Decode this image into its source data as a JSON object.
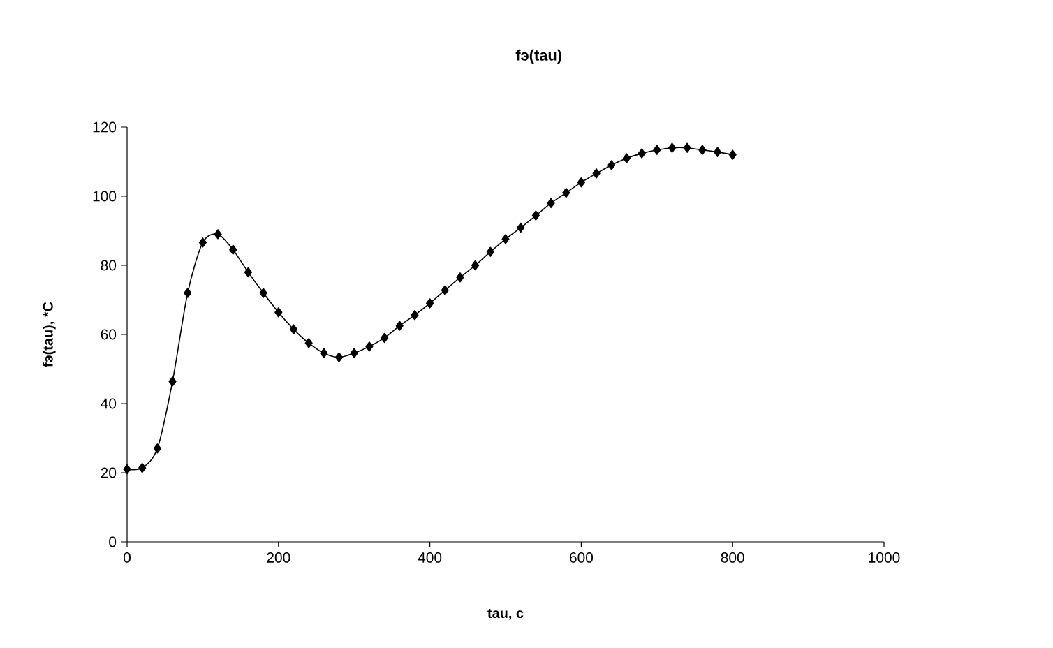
{
  "chart_data": {
    "type": "line",
    "title": "fэ(tau)",
    "xlabel": "tau, c",
    "ylabel": "fэ(tau), *C",
    "x": [
      0,
      20,
      40,
      60,
      80,
      100,
      120,
      140,
      160,
      180,
      200,
      220,
      240,
      260,
      280,
      300,
      320,
      340,
      360,
      380,
      400,
      420,
      440,
      460,
      480,
      500,
      520,
      540,
      560,
      580,
      600,
      620,
      640,
      660,
      680,
      700,
      720,
      740,
      760,
      780,
      800
    ],
    "series": [
      {
        "color": "#000000",
        "values": [
          21,
          21.4,
          27,
          46.4,
          72,
          86.6,
          89,
          84.5,
          78,
          72,
          66.4,
          61.5,
          57.5,
          54.6,
          53.4,
          54.6,
          56.5,
          59,
          62.5,
          65.6,
          69,
          72.8,
          76.5,
          80,
          83.9,
          87.6,
          90.9,
          94.4,
          98,
          101,
          104,
          106.6,
          109,
          111,
          112.4,
          113.4,
          114,
          114,
          113.4,
          112.8,
          112
        ]
      }
    ],
    "xlim": [
      0,
      1000
    ],
    "ylim": [
      0,
      120
    ],
    "xticks": [
      0,
      200,
      400,
      600,
      800,
      1000
    ],
    "yticks": [
      0,
      20,
      40,
      60,
      80,
      100,
      120
    ],
    "marker": "diamond",
    "line_style": "solid"
  }
}
